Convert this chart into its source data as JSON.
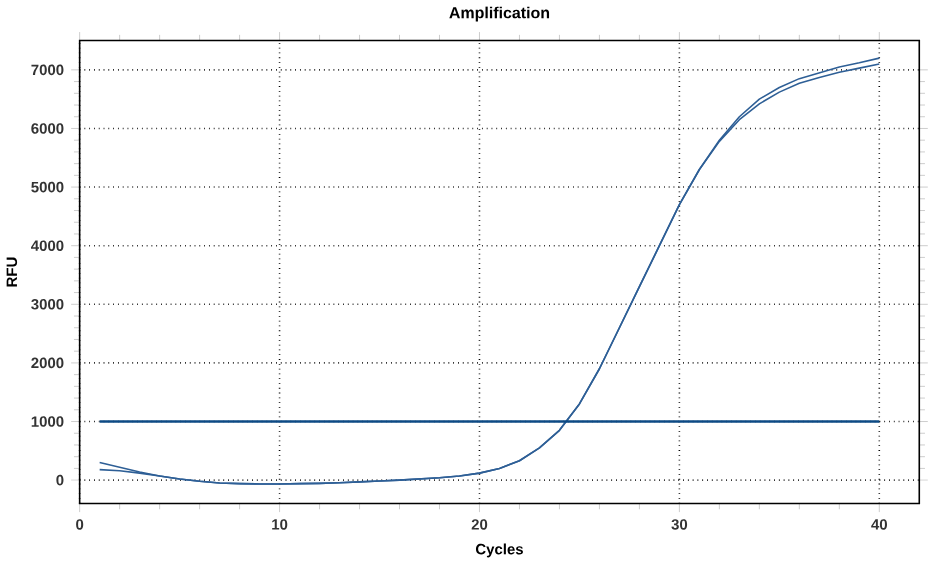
{
  "chart_data": {
    "type": "line",
    "title": "Amplification",
    "xlabel": "Cycles",
    "ylabel": "RFU",
    "x": [
      1,
      2,
      3,
      4,
      5,
      6,
      7,
      8,
      9,
      10,
      11,
      12,
      13,
      14,
      15,
      16,
      17,
      18,
      19,
      20,
      21,
      22,
      23,
      24,
      25,
      26,
      27,
      28,
      29,
      30,
      31,
      32,
      33,
      34,
      35,
      36,
      37,
      38,
      39,
      40
    ],
    "series": [
      {
        "color": "#2e5f96",
        "values": [
          300,
          220,
          140,
          70,
          20,
          -20,
          -50,
          -60,
          -65,
          -65,
          -60,
          -55,
          -45,
          -30,
          -15,
          0,
          20,
          40,
          70,
          120,
          200,
          330,
          550,
          850,
          1300,
          1900,
          2600,
          3300,
          4000,
          4700,
          5300,
          5800,
          6200,
          6500,
          6700,
          6850,
          6950,
          7050,
          7120,
          7200
        ]
      },
      {
        "color": "#2e5f96",
        "values": [
          180,
          160,
          120,
          70,
          20,
          -20,
          -50,
          -60,
          -65,
          -65,
          -60,
          -55,
          -45,
          -30,
          -15,
          0,
          20,
          40,
          70,
          120,
          200,
          330,
          550,
          850,
          1300,
          1900,
          2600,
          3300,
          4000,
          4700,
          5300,
          5780,
          6150,
          6420,
          6620,
          6770,
          6870,
          6960,
          7030,
          7100
        ]
      },
      {
        "color": "#0d4a85",
        "x": [
          1,
          40
        ],
        "values": [
          1000,
          1000
        ]
      }
    ],
    "xlim": [
      0,
      42
    ],
    "ylim": [
      -400,
      7500
    ],
    "xticks": [
      0,
      10,
      20,
      30,
      40
    ],
    "yticks": [
      0,
      1000,
      2000,
      3000,
      4000,
      5000,
      6000,
      7000
    ],
    "grid": true,
    "marker": "none",
    "line_style": "solid"
  }
}
